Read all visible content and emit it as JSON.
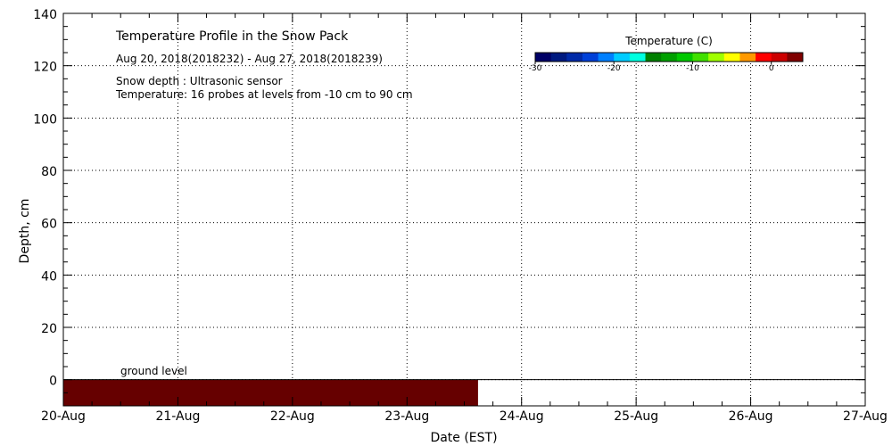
{
  "chart_data": {
    "type": "heatmap",
    "title": "Temperature Profile in the Snow Pack",
    "subtitle": "Aug 20, 2018(2018232) - Aug 27, 2018(2018239)",
    "notes": [
      "Snow depth : Ultrasonic sensor",
      "Temperature: 16 probes at levels from -10 cm to 90 cm"
    ],
    "xlabel": "Date (EST)",
    "ylabel": "Depth, cm",
    "x_ticks": [
      "20-Aug",
      "21-Aug",
      "22-Aug",
      "23-Aug",
      "24-Aug",
      "25-Aug",
      "26-Aug",
      "27-Aug"
    ],
    "xlim_days": [
      0,
      7
    ],
    "ylim": [
      -10,
      140
    ],
    "y_ticks": [
      0,
      20,
      40,
      60,
      80,
      100,
      120,
      140
    ],
    "grid": true,
    "colorbar": {
      "title": "Temperature (C)",
      "ticks": [
        -30,
        -20,
        -10,
        0
      ],
      "range": [
        -30,
        4
      ],
      "colors": [
        "#000066",
        "#001a80",
        "#002aa8",
        "#0040d8",
        "#0080ff",
        "#00ccff",
        "#00ffe0",
        "#008000",
        "#00a000",
        "#00c800",
        "#40e000",
        "#a0ff00",
        "#ffff00",
        "#ff9900",
        "#ff0000",
        "#cc0000",
        "#800000"
      ]
    },
    "ground_level_label": "ground level",
    "ground_band": {
      "from_day": 0,
      "to_day": 3.62,
      "depth_from": -10,
      "depth_to": 0,
      "color": "#660000"
    }
  }
}
